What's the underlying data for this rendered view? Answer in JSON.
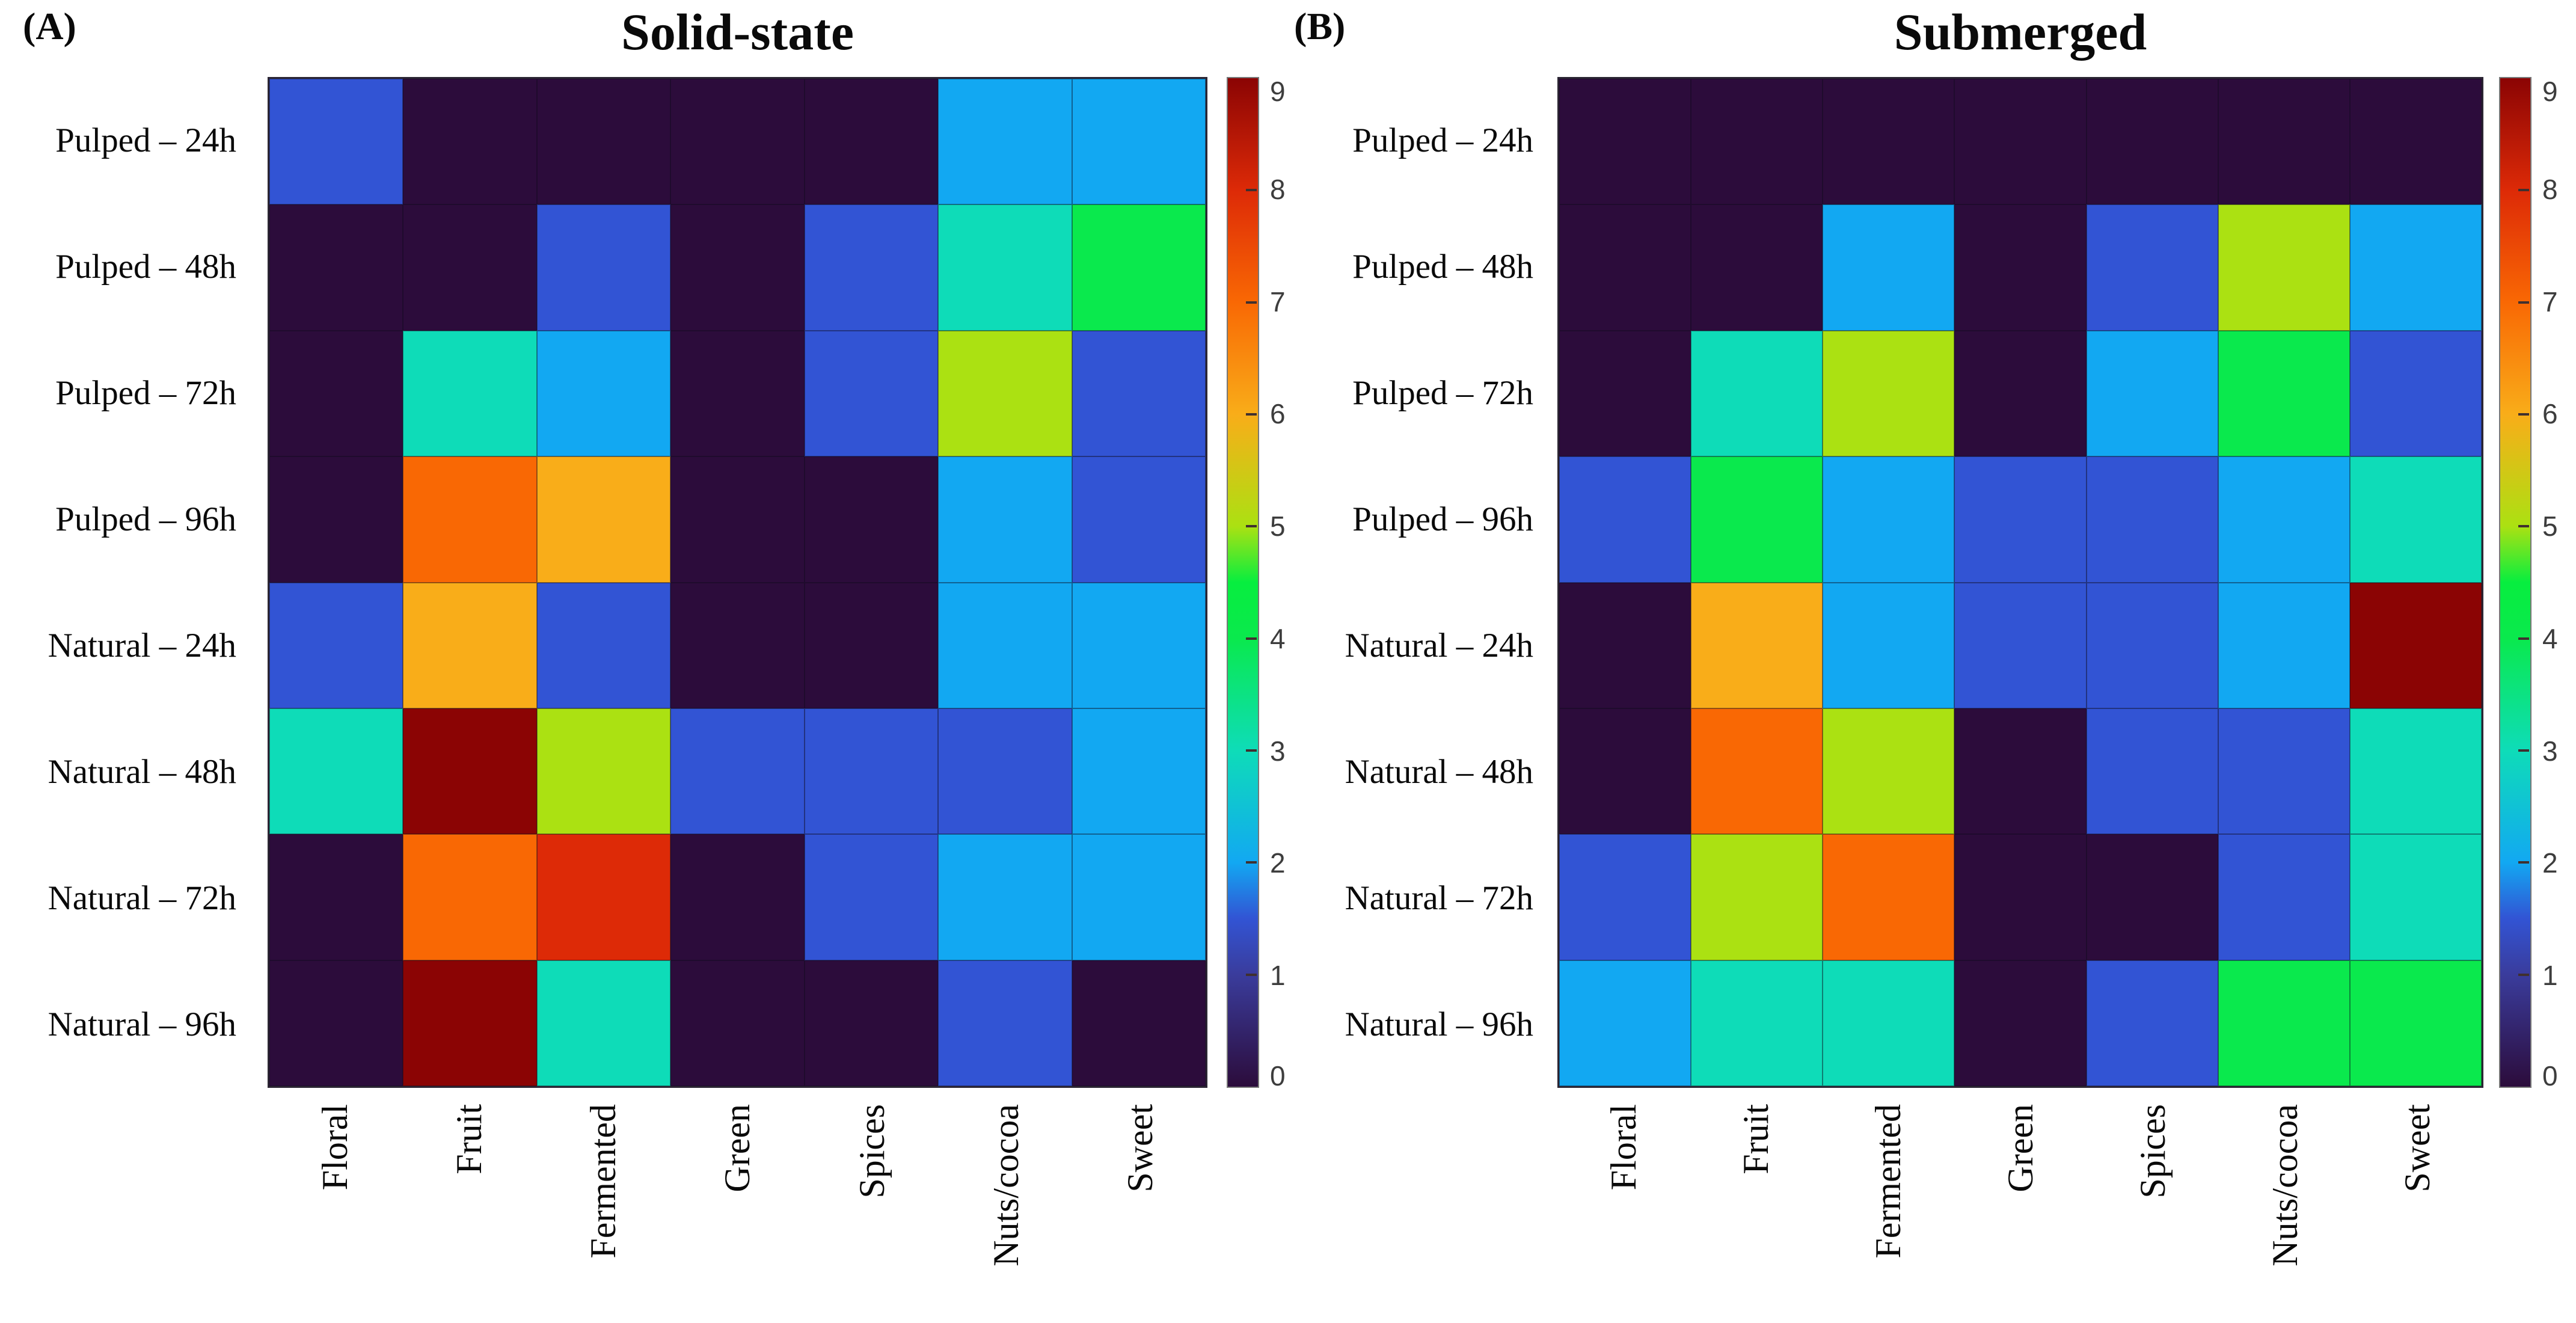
{
  "palette": {
    "background": "#ffffff",
    "grid_line": "#1f1a29",
    "colormap_stops": [
      [
        0,
        "#2c0c3b"
      ],
      [
        1,
        "#3a3c9c"
      ],
      [
        1.5,
        "#3254d4"
      ],
      [
        2,
        "#12a8f2"
      ],
      [
        3,
        "#0edcb8"
      ],
      [
        4,
        "#0ae94d"
      ],
      [
        4.5,
        "#07ee3f"
      ],
      [
        5,
        "#abe112"
      ],
      [
        6,
        "#f9ad19"
      ],
      [
        7,
        "#f96804"
      ],
      [
        8,
        "#dd2a07"
      ],
      [
        9,
        "#8b0404"
      ]
    ]
  },
  "chart_data": [
    {
      "type": "heatmap",
      "panel_label": "(A)",
      "title": "Solid-state",
      "rows": [
        "Pulped – 24h",
        "Pulped – 48h",
        "Pulped – 72h",
        "Pulped – 96h",
        "Natural – 24h",
        "Natural – 48h",
        "Natural – 72h",
        "Natural – 96h"
      ],
      "columns": [
        "Floral",
        "Fruit",
        "Fermented",
        "Green",
        "Spices",
        "Nuts/cocoa",
        "Sweet"
      ],
      "values": [
        [
          1.5,
          0,
          0,
          0,
          0,
          2,
          2
        ],
        [
          0,
          0,
          1.5,
          0,
          1.5,
          3,
          4
        ],
        [
          0,
          3,
          2,
          0,
          1.5,
          5,
          1.5
        ],
        [
          0,
          7,
          6,
          0,
          0,
          2,
          1.5
        ],
        [
          1.5,
          6,
          1.5,
          0,
          0,
          2,
          2
        ],
        [
          3,
          9,
          5,
          1.5,
          1.5,
          1.5,
          2
        ],
        [
          0,
          7,
          8,
          0,
          1.5,
          2,
          2
        ],
        [
          0,
          9,
          3,
          0,
          0,
          1.5,
          0
        ]
      ],
      "colorbar": {
        "min": 0,
        "max": 9,
        "ticks": [
          0,
          1,
          2,
          3,
          4,
          5,
          6,
          7,
          8,
          9
        ]
      }
    },
    {
      "type": "heatmap",
      "panel_label": "(B)",
      "title": "Submerged",
      "rows": [
        "Pulped – 24h",
        "Pulped – 48h",
        "Pulped – 72h",
        "Pulped – 96h",
        "Natural – 24h",
        "Natural – 48h",
        "Natural – 72h",
        "Natural – 96h"
      ],
      "columns": [
        "Floral",
        "Fruit",
        "Fermented",
        "Green",
        "Spices",
        "Nuts/cocoa",
        "Sweet"
      ],
      "values": [
        [
          0,
          0,
          0,
          0,
          0,
          0,
          0
        ],
        [
          0,
          0,
          2,
          0,
          1.5,
          5,
          2
        ],
        [
          0,
          3,
          5,
          0,
          2,
          4,
          1.5
        ],
        [
          1.5,
          4,
          2,
          1.5,
          1.5,
          2,
          3
        ],
        [
          0,
          6,
          2,
          1.5,
          1.5,
          2,
          9
        ],
        [
          0,
          7,
          5,
          0,
          1.5,
          1.5,
          3
        ],
        [
          1.5,
          5,
          7,
          0,
          0,
          1.5,
          3
        ],
        [
          2,
          3,
          3,
          0,
          1.5,
          4,
          4
        ]
      ],
      "colorbar": {
        "min": 0,
        "max": 9,
        "ticks": [
          0,
          1,
          2,
          3,
          4,
          5,
          6,
          7,
          8,
          9
        ]
      }
    }
  ],
  "layout_note": ""
}
